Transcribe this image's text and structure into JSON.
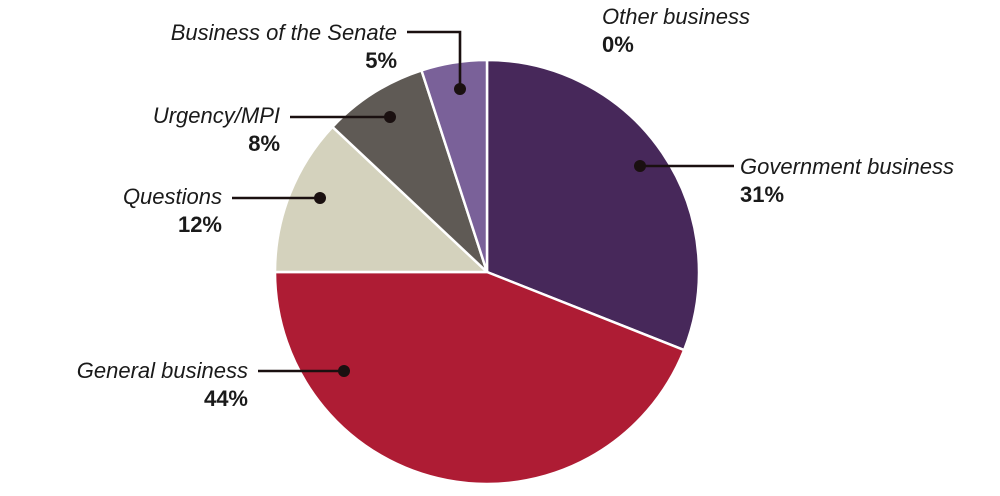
{
  "chart_data": {
    "type": "pie",
    "slices": [
      {
        "name": "Government business",
        "value": 31,
        "label": "31%",
        "color": "#47285a"
      },
      {
        "name": "General business",
        "value": 44,
        "label": "44%",
        "color": "#ae1c34"
      },
      {
        "name": "Questions",
        "value": 12,
        "label": "12%",
        "color": "#d4d2bd"
      },
      {
        "name": "Urgency/MPI",
        "value": 8,
        "label": "8%",
        "color": "#5f5a55"
      },
      {
        "name": "Business of the Senate",
        "value": 5,
        "label": "5%",
        "color": "#7a6199"
      },
      {
        "name": "Other business",
        "value": 0,
        "label": "0%",
        "color": "#ffffff"
      }
    ],
    "start_angle": "12 o'clock",
    "direction": "clockwise",
    "legend": "none"
  }
}
